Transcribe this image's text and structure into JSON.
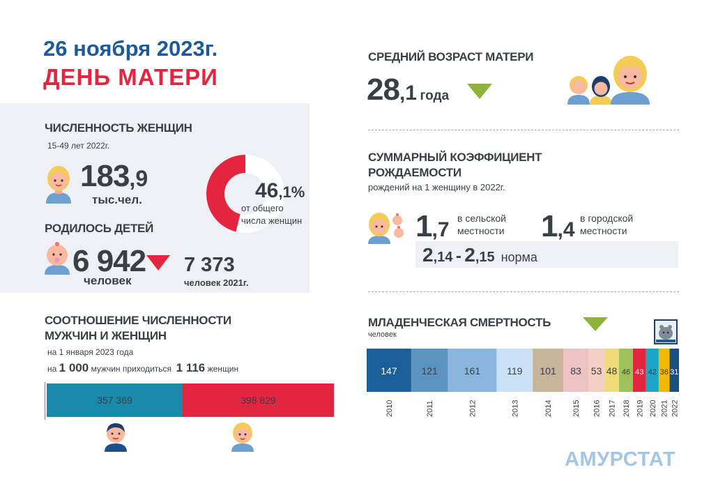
{
  "header": {
    "date": "26 ноября 2023г.",
    "event": "ДЕНЬ  МАТЕРИ"
  },
  "women": {
    "title": "ЧИСЛЕННОСТЬ ЖЕНЩИН",
    "subtitle": "15-49 лет   2022г.",
    "count_int": "183",
    "count_frac": ",9",
    "count_unit": "тыс.чел.",
    "share_int": "46",
    "share_frac": ",1%",
    "share_value": 46.1,
    "share_caption_1": "от общего",
    "share_caption_2": "числа женщин"
  },
  "births": {
    "title": "РОДИЛОСЬ ДЕТЕЙ",
    "count": "6 942",
    "count_unit": "человек",
    "prev_count": "7 373",
    "prev_unit": "человек  2021г."
  },
  "ratio": {
    "title_1": "СООТНОШЕНИЕ ЧИСЛЕННОСТИ",
    "title_2": "МУЖЧИН И ЖЕНЩИН",
    "subtitle": "на 1 января 2023 года",
    "line_prefix": "на",
    "men_base": "1 000",
    "line_mid": "мужчин приходиться",
    "women_per": "1 116",
    "line_suffix": "женщин",
    "men_value": 357369,
    "women_value": 398829,
    "men_label": "357 369",
    "women_label": "398 829"
  },
  "mother_age": {
    "title": "СРЕДНИЙ  ВОЗРАСТ МАТЕРИ",
    "value_int": "28",
    "value_frac": ",1",
    "unit": "года"
  },
  "fertility": {
    "title_1": "СУММАРНЫЙ КОЭФФИЦИЕНТ",
    "title_2": "РОЖДАЕМОСТИ",
    "subtitle": "рождений  на 1 женщину  в 2022г.",
    "rural_int": "1",
    "rural_frac": ",7",
    "rural_label_1": "в сельской",
    "rural_label_2": "местности",
    "urban_int": "1",
    "urban_frac": ",4",
    "urban_label_1": "в городской",
    "urban_label_2": "местности",
    "norm_a_int": "2",
    "norm_a_frac": ",14",
    "norm_sep": "-",
    "norm_b_int": "2",
    "norm_b_frac": ",15",
    "norm_label": "норма"
  },
  "infant_mortality": {
    "title": "МЛАДЕНЧЕСКАЯ СМЕРТНОСТЬ",
    "unit": "человек"
  },
  "chart_data": {
    "type": "bar",
    "title": "МЛАДЕНЧЕСКАЯ СМЕРТНОСТЬ",
    "ylabel": "человек",
    "categories": [
      "2010",
      "2011",
      "2012",
      "2013",
      "2014",
      "2015",
      "2016",
      "2017",
      "2018",
      "2019",
      "2020",
      "2021",
      "2022"
    ],
    "values": [
      147,
      121,
      161,
      119,
      101,
      83,
      53,
      48,
      46,
      43,
      42,
      36,
      31
    ],
    "colors": [
      "#1a5f99",
      "#5b93be",
      "#8ab6de",
      "#cbe1f5",
      "#c8b39b",
      "#ecc3c3",
      "#f2d0c4",
      "#eedc7a",
      "#9dc25a",
      "#e4253f",
      "#19a6c9",
      "#f5b800",
      "#1d4f84"
    ],
    "label_colors": [
      "#ffffff",
      "#3a3f47",
      "#3a3f47",
      "#3a3f47",
      "#3a3f47",
      "#3a3f47",
      "#3a3f47",
      "#3a3f47",
      "#3a3f47",
      "#ffffff",
      "#3a3f47",
      "#3a3f47",
      "#ffffff"
    ]
  },
  "colors": {
    "blue": "#1c5a9c",
    "red": "#e4253f",
    "green_triangle": "#8fb33c",
    "men_bar": "#1a8aab",
    "women_bar": "#e4253f"
  },
  "branding": {
    "agency": "АМУРСТАТ"
  },
  "icons": [
    "woman-icon",
    "baby-icon",
    "man-icon",
    "family-icon",
    "mother-with-babies-icon",
    "emblem-icon",
    "down-triangle-icon"
  ]
}
